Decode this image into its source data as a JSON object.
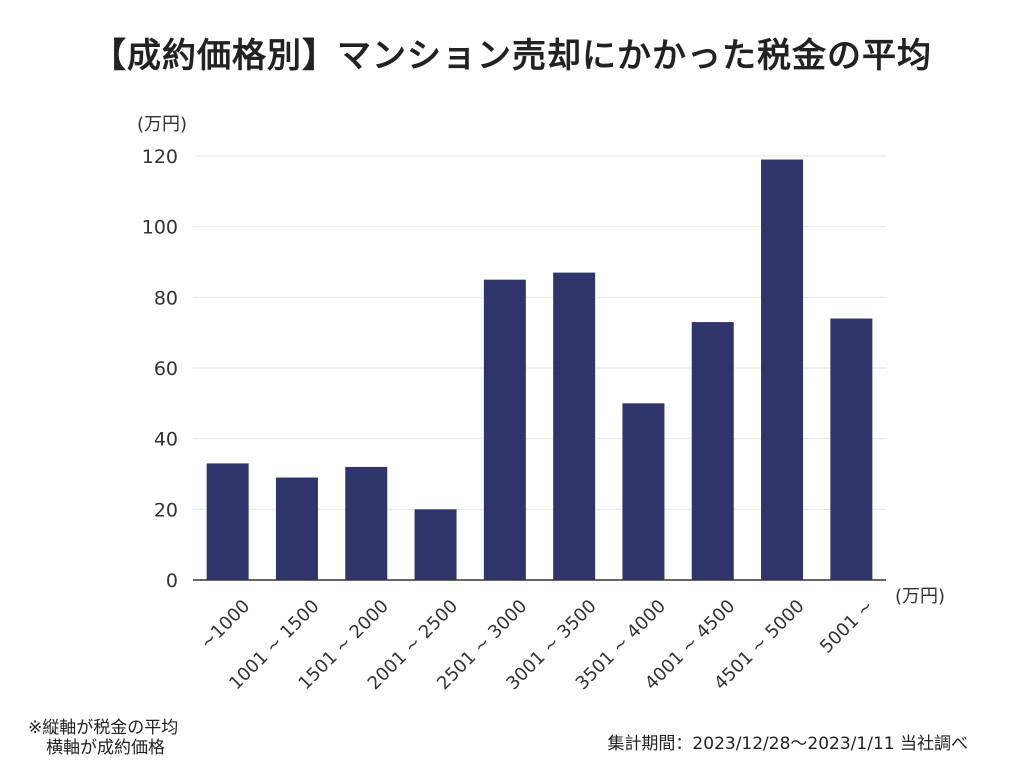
{
  "chart_data": {
    "type": "bar",
    "title": "【成約価格別】マンション売却にかかった税金の平均",
    "ylabel": "(万円)",
    "xlabel": "(万円)",
    "ylim": [
      0,
      120
    ],
    "yticks": [
      "0",
      "20",
      "40",
      "60",
      "80",
      "100",
      "120"
    ],
    "categories": [
      "~1000",
      "1001 ~ 1500",
      "1501 ~ 2000",
      "2001 ~ 2500",
      "2501 ~ 3000",
      "3001 ~ 3500",
      "3501 ~ 4000",
      "4001 ~ 4500",
      "4501 ~ 5000",
      "5001 ~"
    ],
    "values": [
      33,
      29,
      32,
      20,
      85,
      87,
      50,
      73,
      119,
      74
    ],
    "bar_color": "#2f356b",
    "grid": true
  },
  "notes": {
    "left_line1": "※縦軸が税金の平均",
    "left_line2": "横軸が成約価格",
    "right": "集計期間：2023/12/28～2023/1/11 当社調べ"
  }
}
